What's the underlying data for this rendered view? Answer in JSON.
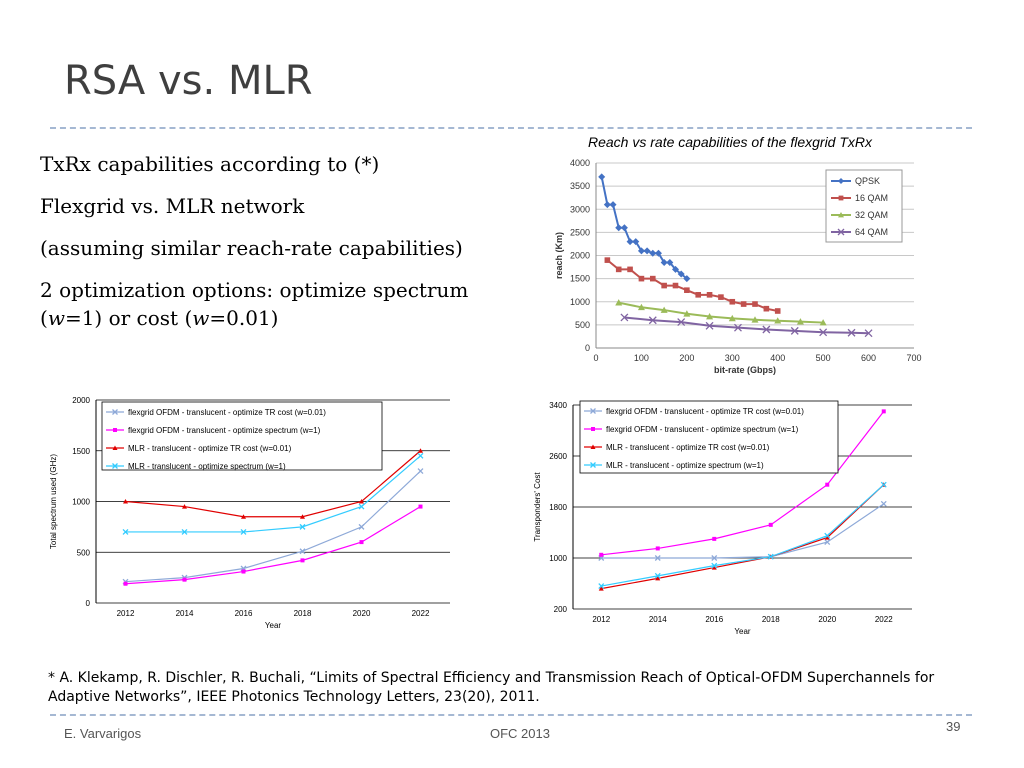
{
  "slide": {
    "title": "RSA vs. MLR",
    "bullets": [
      {
        "text": "TxRx capabilities according to (*)"
      },
      {
        "text": "Flexgrid vs. MLR network"
      },
      {
        "text": "(assuming similar reach-rate capabilities)"
      },
      {
        "pre": "2 optimization options: optimize spectrum (",
        "v1": "w",
        "m1": "=1) or cost (",
        "v2": "w",
        "post": "=0.01)"
      }
    ],
    "reach_caption": "Reach vs rate capabilities of the flexgrid TxRx",
    "footnote": "* A.  Klekamp, R. Dischler, R. Buchali, “Limits of Spectral Efficiency and Transmission Reach of Optical-OFDM Superchannels for Adaptive Networks”, IEEE Photonics Technology Letters,  23(20), 2011.",
    "footer_left": "E. Varvarigos",
    "footer_center": "OFC 2013",
    "page_number": "39"
  },
  "chart_data": [
    {
      "type": "line",
      "xlabel": "bit-rate (Gbps)",
      "ylabel": "reach (Km)",
      "xlim": [
        0,
        700
      ],
      "ylim": [
        0,
        4000
      ],
      "xticks": [
        0,
        100,
        200,
        300,
        400,
        500,
        600,
        700
      ],
      "yticks": [
        0,
        500,
        1000,
        1500,
        2000,
        2500,
        3000,
        3500,
        4000
      ],
      "grid": true,
      "legend": "top-right",
      "series": [
        {
          "name": "QPSK",
          "color": "#4472c4",
          "marker": "diamond",
          "x": [
            12.5,
            25,
            37.5,
            50,
            62.5,
            75,
            87.5,
            100,
            112.5,
            125,
            137.5,
            150,
            162.5,
            175,
            187.5,
            200
          ],
          "y": [
            3700,
            3100,
            3100,
            2600,
            2600,
            2300,
            2300,
            2100,
            2100,
            2050,
            2050,
            1850,
            1850,
            1700,
            1600,
            1500
          ]
        },
        {
          "name": "16 QAM",
          "color": "#c0504d",
          "marker": "square",
          "x": [
            25,
            50,
            75,
            100,
            125,
            150,
            175,
            200,
            225,
            250,
            275,
            300,
            325,
            350,
            375,
            400
          ],
          "y": [
            1900,
            1700,
            1700,
            1500,
            1500,
            1350,
            1350,
            1250,
            1150,
            1150,
            1100,
            1000,
            950,
            950,
            850,
            800
          ]
        },
        {
          "name": "32 QAM",
          "color": "#9bbb59",
          "marker": "triangle",
          "x": [
            50,
            100,
            150,
            200,
            250,
            300,
            350,
            400,
            450,
            500
          ],
          "y": [
            980,
            880,
            820,
            740,
            680,
            640,
            610,
            590,
            570,
            550
          ]
        },
        {
          "name": "64 QAM",
          "color": "#8064a2",
          "marker": "x",
          "x": [
            62.5,
            125,
            187.5,
            250,
            312.5,
            375,
            437.5,
            500,
            562.5,
            600
          ],
          "y": [
            660,
            600,
            560,
            480,
            440,
            400,
            370,
            340,
            330,
            320
          ]
        }
      ]
    },
    {
      "type": "line",
      "xlabel": "Year",
      "ylabel": "Total spectrum used (GHz)",
      "x": [
        2012,
        2014,
        2016,
        2018,
        2020,
        2022
      ],
      "xlim": [
        2011,
        2023
      ],
      "ylim": [
        0,
        2000
      ],
      "yticks": [
        0,
        500,
        1000,
        1500,
        2000
      ],
      "grid": true,
      "legend": "top-left",
      "series": [
        {
          "name": "flexgrid OFDM - translucent - optimize TR cost (w=0.01)",
          "color": "#8ea9d8",
          "marker": "x",
          "values": [
            210,
            250,
            340,
            510,
            750,
            1300
          ]
        },
        {
          "name": "flexgrid OFDM - translucent - optimize spectrum (w=1)",
          "color": "#ff00ff",
          "marker": "square",
          "values": [
            190,
            230,
            310,
            420,
            600,
            950
          ]
        },
        {
          "name": "MLR - translucent - optimize TR cost (w=0.01)",
          "color": "#e00000",
          "marker": "triangle",
          "values": [
            1000,
            950,
            850,
            850,
            1000,
            1500
          ]
        },
        {
          "name": "MLR - translucent - optimize spectrum  (w=1)",
          "color": "#33ccff",
          "marker": "x",
          "values": [
            700,
            700,
            700,
            750,
            950,
            1450
          ]
        }
      ]
    },
    {
      "type": "line",
      "xlabel": "Year",
      "ylabel": "Transponders' Cost",
      "x": [
        2012,
        2014,
        2016,
        2018,
        2020,
        2022
      ],
      "xlim": [
        2011,
        2023
      ],
      "ylim": [
        200,
        3400
      ],
      "yticks": [
        200,
        1000,
        1800,
        2600,
        3400
      ],
      "grid": true,
      "legend": "top-left",
      "series": [
        {
          "name": "flexgrid OFDM - translucent - optimize TR cost (w=0.01)",
          "color": "#8ea9d8",
          "marker": "x",
          "values": [
            1000,
            1000,
            1000,
            1020,
            1250,
            1850
          ]
        },
        {
          "name": "flexgrid OFDM - translucent - optimize spectrum (w=1)",
          "color": "#ff00ff",
          "marker": "square",
          "values": [
            1050,
            1150,
            1300,
            1520,
            2150,
            3300
          ]
        },
        {
          "name": "MLR - translucent - optimize TR cost (w=0.01)",
          "color": "#e00000",
          "marker": "triangle",
          "values": [
            520,
            680,
            850,
            1020,
            1320,
            2150
          ]
        },
        {
          "name": "MLR - translucent - optimize spectrum  (w=1)",
          "color": "#33ccff",
          "marker": "x",
          "values": [
            560,
            720,
            880,
            1020,
            1350,
            2150
          ]
        }
      ]
    }
  ]
}
